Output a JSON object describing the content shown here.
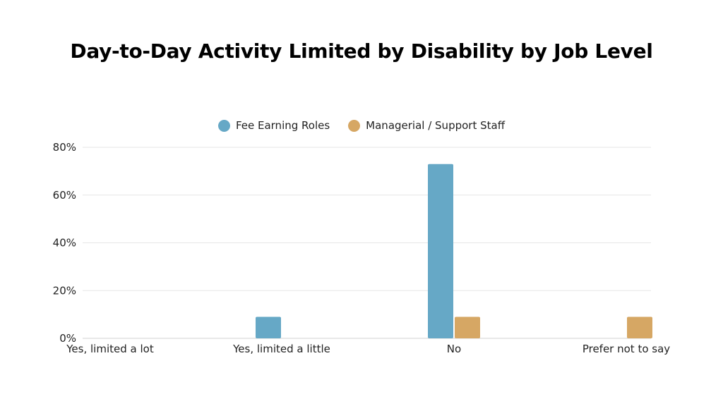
{
  "chart_data": {
    "type": "bar",
    "title": "Day-to-Day Activity Limited by Disability by Job Level",
    "categories": [
      "Yes, limited a lot",
      "Yes, limited a little",
      "No",
      "Prefer not to say"
    ],
    "series": [
      {
        "name": "Fee Earning Roles",
        "values": [
          0,
          9,
          73,
          0
        ],
        "color": "#66a8c6"
      },
      {
        "name": "Managerial / Support Staff",
        "values": [
          0,
          0,
          9,
          9
        ],
        "color": "#d6a764"
      }
    ],
    "ylim": [
      0,
      80
    ],
    "yticks": [
      "0%",
      "20%",
      "40%",
      "60%",
      "80%"
    ],
    "grid": true,
    "legend_position": "top-center"
  }
}
